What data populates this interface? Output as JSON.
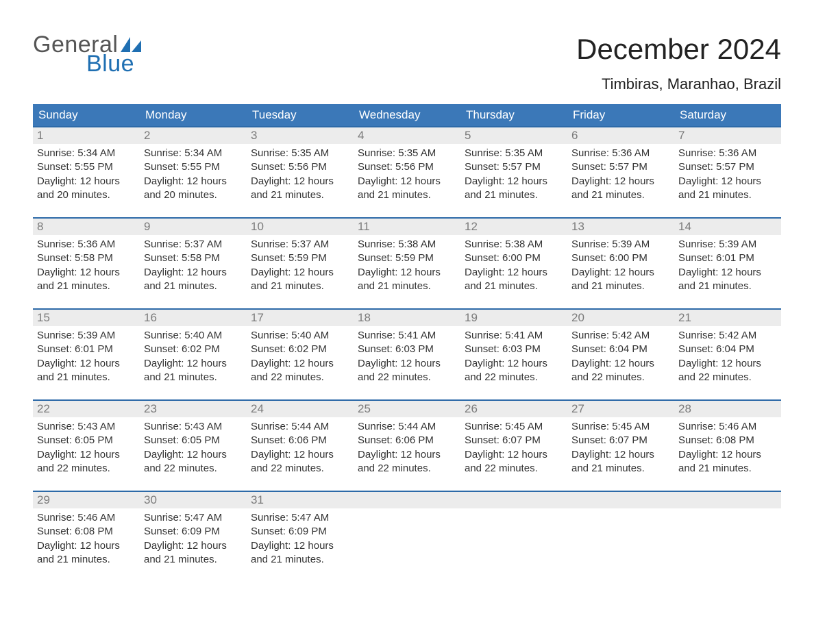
{
  "logo": {
    "line1": "General",
    "line2": "Blue",
    "flag_color": "#1f6fb2",
    "text_grey": "#555555"
  },
  "title": "December 2024",
  "location": "Timbiras, Maranhao, Brazil",
  "colors": {
    "header_blue": "#3b78b8",
    "accent_blue": "#1f6fb2",
    "accent_border": "#2d6aa8",
    "row_grey": "#ececec",
    "page_bg": "#ffffff"
  },
  "dows": [
    "Sunday",
    "Monday",
    "Tuesday",
    "Wednesday",
    "Thursday",
    "Friday",
    "Saturday"
  ],
  "label": {
    "sunrise": "Sunrise: ",
    "sunset": "Sunset: ",
    "daylight": "Daylight: "
  },
  "weeks": [
    [
      {
        "n": "1",
        "sr": "5:34 AM",
        "ss": "5:55 PM",
        "dl": "12 hours and 20 minutes."
      },
      {
        "n": "2",
        "sr": "5:34 AM",
        "ss": "5:55 PM",
        "dl": "12 hours and 20 minutes."
      },
      {
        "n": "3",
        "sr": "5:35 AM",
        "ss": "5:56 PM",
        "dl": "12 hours and 21 minutes."
      },
      {
        "n": "4",
        "sr": "5:35 AM",
        "ss": "5:56 PM",
        "dl": "12 hours and 21 minutes."
      },
      {
        "n": "5",
        "sr": "5:35 AM",
        "ss": "5:57 PM",
        "dl": "12 hours and 21 minutes."
      },
      {
        "n": "6",
        "sr": "5:36 AM",
        "ss": "5:57 PM",
        "dl": "12 hours and 21 minutes."
      },
      {
        "n": "7",
        "sr": "5:36 AM",
        "ss": "5:57 PM",
        "dl": "12 hours and 21 minutes."
      }
    ],
    [
      {
        "n": "8",
        "sr": "5:36 AM",
        "ss": "5:58 PM",
        "dl": "12 hours and 21 minutes."
      },
      {
        "n": "9",
        "sr": "5:37 AM",
        "ss": "5:58 PM",
        "dl": "12 hours and 21 minutes."
      },
      {
        "n": "10",
        "sr": "5:37 AM",
        "ss": "5:59 PM",
        "dl": "12 hours and 21 minutes."
      },
      {
        "n": "11",
        "sr": "5:38 AM",
        "ss": "5:59 PM",
        "dl": "12 hours and 21 minutes."
      },
      {
        "n": "12",
        "sr": "5:38 AM",
        "ss": "6:00 PM",
        "dl": "12 hours and 21 minutes."
      },
      {
        "n": "13",
        "sr": "5:39 AM",
        "ss": "6:00 PM",
        "dl": "12 hours and 21 minutes."
      },
      {
        "n": "14",
        "sr": "5:39 AM",
        "ss": "6:01 PM",
        "dl": "12 hours and 21 minutes."
      }
    ],
    [
      {
        "n": "15",
        "sr": "5:39 AM",
        "ss": "6:01 PM",
        "dl": "12 hours and 21 minutes."
      },
      {
        "n": "16",
        "sr": "5:40 AM",
        "ss": "6:02 PM",
        "dl": "12 hours and 21 minutes."
      },
      {
        "n": "17",
        "sr": "5:40 AM",
        "ss": "6:02 PM",
        "dl": "12 hours and 22 minutes."
      },
      {
        "n": "18",
        "sr": "5:41 AM",
        "ss": "6:03 PM",
        "dl": "12 hours and 22 minutes."
      },
      {
        "n": "19",
        "sr": "5:41 AM",
        "ss": "6:03 PM",
        "dl": "12 hours and 22 minutes."
      },
      {
        "n": "20",
        "sr": "5:42 AM",
        "ss": "6:04 PM",
        "dl": "12 hours and 22 minutes."
      },
      {
        "n": "21",
        "sr": "5:42 AM",
        "ss": "6:04 PM",
        "dl": "12 hours and 22 minutes."
      }
    ],
    [
      {
        "n": "22",
        "sr": "5:43 AM",
        "ss": "6:05 PM",
        "dl": "12 hours and 22 minutes."
      },
      {
        "n": "23",
        "sr": "5:43 AM",
        "ss": "6:05 PM",
        "dl": "12 hours and 22 minutes."
      },
      {
        "n": "24",
        "sr": "5:44 AM",
        "ss": "6:06 PM",
        "dl": "12 hours and 22 minutes."
      },
      {
        "n": "25",
        "sr": "5:44 AM",
        "ss": "6:06 PM",
        "dl": "12 hours and 22 minutes."
      },
      {
        "n": "26",
        "sr": "5:45 AM",
        "ss": "6:07 PM",
        "dl": "12 hours and 22 minutes."
      },
      {
        "n": "27",
        "sr": "5:45 AM",
        "ss": "6:07 PM",
        "dl": "12 hours and 21 minutes."
      },
      {
        "n": "28",
        "sr": "5:46 AM",
        "ss": "6:08 PM",
        "dl": "12 hours and 21 minutes."
      }
    ],
    [
      {
        "n": "29",
        "sr": "5:46 AM",
        "ss": "6:08 PM",
        "dl": "12 hours and 21 minutes."
      },
      {
        "n": "30",
        "sr": "5:47 AM",
        "ss": "6:09 PM",
        "dl": "12 hours and 21 minutes."
      },
      {
        "n": "31",
        "sr": "5:47 AM",
        "ss": "6:09 PM",
        "dl": "12 hours and 21 minutes."
      },
      null,
      null,
      null,
      null
    ]
  ]
}
